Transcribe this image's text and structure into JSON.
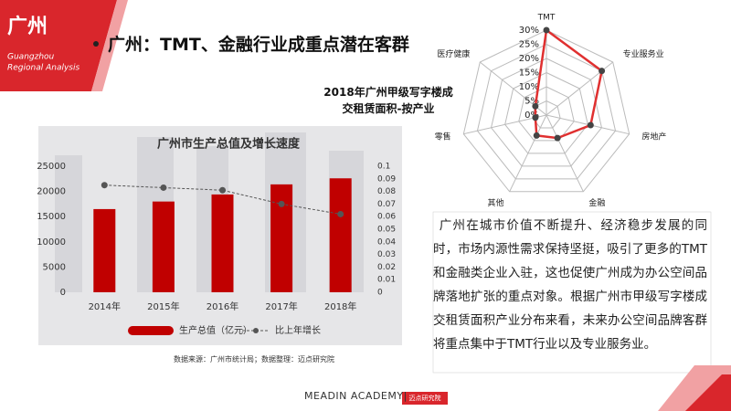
{
  "header": {
    "city": "广州",
    "city_en_1": "Guangzhou",
    "city_en_2": "Regional Analysis",
    "title": "广州：TMT、金融行业成重点潜在客群"
  },
  "paragraph": "广州在城市价值不断提升、经济稳步发展的同时，市场内源性需求保持坚挺，吸引了更多的TMT和金融类企业入驻，这也促使广州成为办公空间品牌落地扩张的重点对象。根据广州市甲级写字楼成交租赁面积产业分布来看，未来办公空间品牌客群将重点集中于TMT行业以及专业服务业。",
  "source": "数据来源：广州市统计局；数据整理：迈点研究院",
  "footer": {
    "brand": "MEADIN ACADEMY|",
    "logo": "迈点研究院"
  },
  "chart_data": [
    {
      "type": "bar",
      "title": "广州市生产总值及增长速度",
      "categories": [
        "2014年",
        "2015年",
        "2016年",
        "2017年",
        "2018年"
      ],
      "series": [
        {
          "name": "生产总值（亿元）",
          "type": "bar",
          "color": "#c00000",
          "values": [
            16500,
            18000,
            19400,
            21400,
            22600
          ]
        },
        {
          "name": "比上年增长",
          "type": "line",
          "axis": "y2",
          "color": "#555555",
          "values": [
            0.085,
            0.083,
            0.081,
            0.07,
            0.062
          ]
        }
      ],
      "ylim": [
        0,
        25000
      ],
      "yticks": [
        0,
        5000,
        10000,
        15000,
        20000,
        25000
      ],
      "y2lim": [
        0,
        0.1
      ],
      "y2ticks": [
        0,
        0.01,
        0.02,
        0.03,
        0.04,
        0.05,
        0.06,
        0.07,
        0.08,
        0.09,
        0.1
      ],
      "grid": false,
      "legend": "bottom"
    },
    {
      "type": "radar",
      "title": "2018年广州甲级写字楼成交租赁面积-按产业",
      "categories": [
        "TMT",
        "专业服务业",
        "房地产",
        "金融",
        "其他",
        "零售",
        "医疗健康"
      ],
      "series": [
        {
          "color": "#e03030",
          "values": [
            30,
            25,
            16,
            9,
            8,
            4,
            5
          ]
        }
      ],
      "rlim": [
        0,
        30
      ],
      "rticks": [
        {
          "value": 0,
          "label": "0%"
        },
        {
          "value": 5,
          "label": "5%"
        },
        {
          "value": 10,
          "label": "10%"
        },
        {
          "value": 15,
          "label": "15%"
        },
        {
          "value": 20,
          "label": "20%"
        },
        {
          "value": 25,
          "label": "25%"
        },
        {
          "value": 30,
          "label": "30%"
        }
      ],
      "grid": true
    }
  ]
}
